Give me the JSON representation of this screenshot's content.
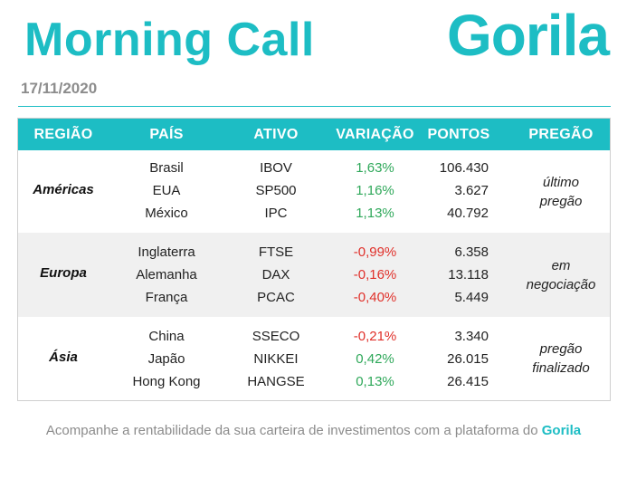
{
  "title": "Morning Call",
  "brand": "Gorila",
  "date": "17/11/2020",
  "headers": {
    "region": "REGIÃO",
    "country": "PAÍS",
    "asset": "ATIVO",
    "variation": "VARIAÇÃO",
    "points": "PONTOS",
    "session": "PREGÃO"
  },
  "groups": [
    {
      "region": "Américas",
      "session_line1": "último",
      "session_line2": "pregão",
      "rows": [
        {
          "country": "Brasil",
          "asset": "IBOV",
          "variation": "1,63%",
          "points": "106.430"
        },
        {
          "country": "EUA",
          "asset": "SP500",
          "variation": "1,16%",
          "points": "3.627"
        },
        {
          "country": "México",
          "asset": "IPC",
          "variation": "1,13%",
          "points": "40.792"
        }
      ]
    },
    {
      "region": "Europa",
      "session_line1": "em",
      "session_line2": "negociação",
      "rows": [
        {
          "country": "Inglaterra",
          "asset": "FTSE",
          "variation": "-0,99%",
          "points": "6.358"
        },
        {
          "country": "Alemanha",
          "asset": "DAX",
          "variation": "-0,16%",
          "points": "13.118"
        },
        {
          "country": "França",
          "asset": "PCAC",
          "variation": "-0,40%",
          "points": "5.449"
        }
      ]
    },
    {
      "region": "Ásia",
      "session_line1": "pregão",
      "session_line2": "finalizado",
      "rows": [
        {
          "country": "China",
          "asset": "SSECO",
          "variation": "-0,21%",
          "points": "3.340"
        },
        {
          "country": "Japão",
          "asset": "NIKKEI",
          "variation": "0,42%",
          "points": "26.015"
        },
        {
          "country": "Hong Kong",
          "asset": "HANGSE",
          "variation": "0,13%",
          "points": "26.415"
        }
      ]
    }
  ],
  "footer": {
    "text": "Acompanhe a rentabilidade da sua carteira de investimentos com a plataforma do ",
    "brand": "Gorila"
  },
  "colors": {
    "accent": "#1dbdc4",
    "positive": "#2fa85a",
    "negative": "#e0302a",
    "muted": "#8c8c8c",
    "band": "#f0f0f0"
  }
}
